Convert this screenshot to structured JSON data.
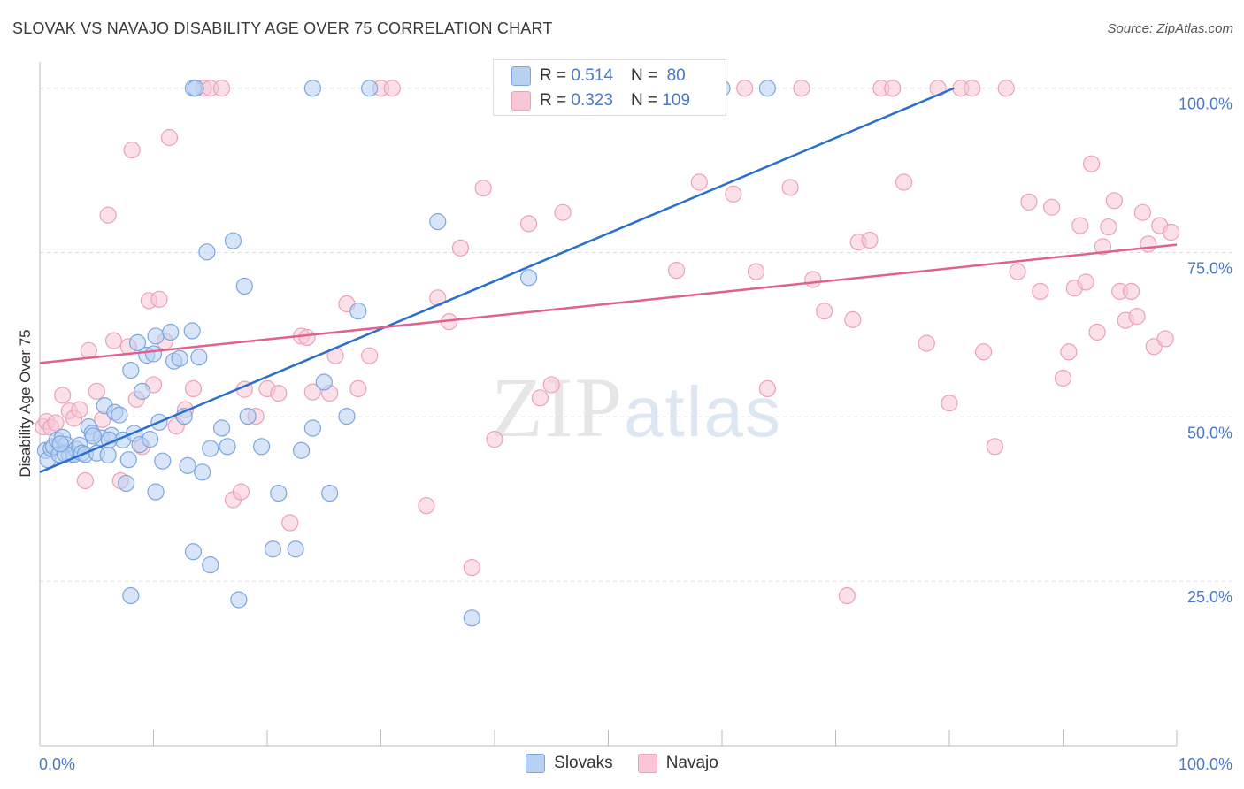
{
  "header": {
    "title": "SLOVAK VS NAVAJO DISABILITY AGE OVER 75 CORRELATION CHART",
    "source": "Source: ZipAtlas.com"
  },
  "watermark": {
    "zip": "ZIP",
    "atlas": "atlas"
  },
  "legend_top": {
    "rows": [
      {
        "r_label": "R =",
        "r_value": "0.514",
        "n_label": "N =",
        "n_value": "80"
      },
      {
        "r_label": "R =",
        "r_value": "0.323",
        "n_label": "N =",
        "n_value": "109"
      }
    ]
  },
  "colors": {
    "slovaks_fill": "#b8d0f2",
    "slovaks_stroke": "#7aa6e0",
    "slovaks_line": "#2a6fcc",
    "navajo_fill": "#f8c6d6",
    "navajo_stroke": "#eda0bb",
    "navajo_line": "#e0608e"
  },
  "chart_data": {
    "type": "scatter",
    "title": "SLOVAK VS NAVAJO DISABILITY AGE OVER 75 CORRELATION CHART",
    "xlabel": "",
    "ylabel": "Disability Age Over 75",
    "xlim": [
      0,
      100
    ],
    "ylim": [
      0,
      104
    ],
    "x_tick_labels": [
      "0.0%",
      "100.0%"
    ],
    "y_ticks": [
      25,
      50,
      75,
      100
    ],
    "y_tick_labels": [
      "25.0%",
      "50.0%",
      "75.0%",
      "100.0%"
    ],
    "grid": "horizontal dashed",
    "legend_position": "bottom-center",
    "series": [
      {
        "name": "Slovaks",
        "r": 0.514,
        "n": 80,
        "trend": [
          [
            0,
            41.6
          ],
          [
            80.4,
            100
          ]
        ],
        "points": [
          [
            0.5,
            44.9
          ],
          [
            0.7,
            43.5
          ],
          [
            1,
            45.2
          ],
          [
            1.2,
            45.5
          ],
          [
            1.5,
            46.5
          ],
          [
            1.7,
            44.3
          ],
          [
            2,
            46.9
          ],
          [
            2.3,
            45.8
          ],
          [
            2.6,
            44.2
          ],
          [
            3,
            44.3
          ],
          [
            3.2,
            45.1
          ],
          [
            3.5,
            45.7
          ],
          [
            3.7,
            44.5
          ],
          [
            4,
            44.3
          ],
          [
            4.3,
            48.5
          ],
          [
            4.6,
            47.5
          ],
          [
            5,
            44.5
          ],
          [
            5.4,
            46.8
          ],
          [
            5.7,
            51.7
          ],
          [
            6,
            44.2
          ],
          [
            6.3,
            47.2
          ],
          [
            6.6,
            50.7
          ],
          [
            7,
            50.3
          ],
          [
            7.3,
            46.5
          ],
          [
            7.6,
            39.9
          ],
          [
            7.8,
            43.5
          ],
          [
            8,
            57.1
          ],
          [
            8.3,
            47.5
          ],
          [
            8.6,
            61.3
          ],
          [
            8.8,
            45.8
          ],
          [
            9,
            53.9
          ],
          [
            9.4,
            59.4
          ],
          [
            9.7,
            46.6
          ],
          [
            10,
            59.6
          ],
          [
            10.2,
            62.3
          ],
          [
            10.5,
            49.2
          ],
          [
            10.8,
            43.3
          ],
          [
            11.5,
            62.9
          ],
          [
            11.8,
            58.5
          ],
          [
            12.3,
            58.9
          ],
          [
            12.7,
            50.1
          ],
          [
            13,
            42.6
          ],
          [
            13.4,
            63.1
          ],
          [
            14,
            59.1
          ],
          [
            14.3,
            41.6
          ],
          [
            14.7,
            75.1
          ],
          [
            15,
            45.2
          ],
          [
            16,
            48.3
          ],
          [
            16.5,
            45.5
          ],
          [
            17,
            76.8
          ],
          [
            17.5,
            22.2
          ],
          [
            18,
            69.9
          ],
          [
            18.3,
            50.1
          ],
          [
            19.5,
            45.5
          ],
          [
            20.5,
            29.9
          ],
          [
            21,
            38.4
          ],
          [
            22.5,
            29.9
          ],
          [
            23,
            44.9
          ],
          [
            24,
            48.3
          ],
          [
            25,
            55.3
          ],
          [
            25.5,
            38.4
          ],
          [
            27,
            50.1
          ],
          [
            28,
            66.1
          ],
          [
            35,
            79.7
          ],
          [
            38,
            19.4
          ],
          [
            43,
            71.2
          ],
          [
            13.5,
            29.5
          ],
          [
            15,
            27.5
          ],
          [
            10.2,
            38.6
          ],
          [
            8,
            22.8
          ],
          [
            13.5,
            100
          ],
          [
            13.7,
            100
          ],
          [
            24,
            100
          ],
          [
            29,
            100
          ],
          [
            60,
            100
          ],
          [
            64,
            100
          ],
          [
            4.7,
            47.1
          ],
          [
            6.1,
            46.5
          ],
          [
            2.2,
            44.4
          ],
          [
            1.8,
            45.9
          ]
        ]
      },
      {
        "name": "Navajo",
        "r": 0.323,
        "n": 109,
        "trend": [
          [
            0,
            58.2
          ],
          [
            100,
            76.2
          ]
        ],
        "points": [
          [
            0.3,
            48.5
          ],
          [
            0.6,
            49.3
          ],
          [
            1,
            48.4
          ],
          [
            1.4,
            49.1
          ],
          [
            2,
            53.3
          ],
          [
            2.6,
            50.9
          ],
          [
            3,
            49.8
          ],
          [
            3.5,
            51.1
          ],
          [
            4,
            40.3
          ],
          [
            4.3,
            60.1
          ],
          [
            5,
            53.9
          ],
          [
            5.5,
            49.6
          ],
          [
            6,
            80.7
          ],
          [
            6.5,
            61.6
          ],
          [
            7.1,
            40.3
          ],
          [
            7.8,
            60.7
          ],
          [
            8.1,
            90.6
          ],
          [
            8.5,
            52.7
          ],
          [
            9,
            45.5
          ],
          [
            9.6,
            67.7
          ],
          [
            10,
            54.9
          ],
          [
            10.5,
            67.9
          ],
          [
            11,
            61.5
          ],
          [
            11.4,
            92.5
          ],
          [
            12,
            48.6
          ],
          [
            12.8,
            51.1
          ],
          [
            13.5,
            54.3
          ],
          [
            14.4,
            100
          ],
          [
            15,
            100
          ],
          [
            16,
            100
          ],
          [
            17,
            37.4
          ],
          [
            17.7,
            38.6
          ],
          [
            18,
            54.2
          ],
          [
            19,
            50.1
          ],
          [
            20,
            54.3
          ],
          [
            21,
            53.6
          ],
          [
            22,
            33.9
          ],
          [
            23,
            62.3
          ],
          [
            23.5,
            62.1
          ],
          [
            24,
            53.8
          ],
          [
            25.5,
            53.6
          ],
          [
            26,
            59.3
          ],
          [
            27,
            67.2
          ],
          [
            28,
            54.3
          ],
          [
            29,
            59.3
          ],
          [
            30,
            100
          ],
          [
            31,
            100
          ],
          [
            34,
            36.5
          ],
          [
            35,
            68.1
          ],
          [
            36,
            64.5
          ],
          [
            37,
            75.7
          ],
          [
            38,
            27.1
          ],
          [
            39,
            84.8
          ],
          [
            40,
            46.6
          ],
          [
            41,
            100
          ],
          [
            43,
            79.4
          ],
          [
            44,
            52.9
          ],
          [
            45,
            54.9
          ],
          [
            46,
            81.1
          ],
          [
            53,
            100
          ],
          [
            56,
            72.3
          ],
          [
            58,
            85.7
          ],
          [
            61,
            83.9
          ],
          [
            62,
            100
          ],
          [
            63,
            72.1
          ],
          [
            64,
            54.3
          ],
          [
            66,
            84.9
          ],
          [
            67,
            100
          ],
          [
            68,
            70.9
          ],
          [
            69,
            66.1
          ],
          [
            71,
            22.8
          ],
          [
            71.5,
            64.8
          ],
          [
            72,
            76.6
          ],
          [
            73,
            76.9
          ],
          [
            74,
            100
          ],
          [
            75,
            100
          ],
          [
            76,
            85.7
          ],
          [
            78,
            61.2
          ],
          [
            79,
            100
          ],
          [
            80,
            52.1
          ],
          [
            81,
            100
          ],
          [
            82,
            100
          ],
          [
            83,
            59.9
          ],
          [
            84,
            45.5
          ],
          [
            85,
            100
          ],
          [
            86,
            72.1
          ],
          [
            87,
            82.7
          ],
          [
            88,
            69.1
          ],
          [
            89,
            81.9
          ],
          [
            90,
            55.9
          ],
          [
            90.5,
            59.9
          ],
          [
            91,
            69.6
          ],
          [
            91.5,
            79.1
          ],
          [
            92,
            70.5
          ],
          [
            92.5,
            88.5
          ],
          [
            93,
            62.9
          ],
          [
            93.5,
            75.9
          ],
          [
            94,
            78.9
          ],
          [
            94.5,
            82.9
          ],
          [
            95,
            69.1
          ],
          [
            95.5,
            64.7
          ],
          [
            96,
            69.1
          ],
          [
            96.5,
            65.3
          ],
          [
            97,
            81.1
          ],
          [
            97.5,
            76.3
          ],
          [
            98,
            60.7
          ],
          [
            98.5,
            79.1
          ],
          [
            99,
            61.9
          ],
          [
            99.5,
            78.1
          ]
        ]
      }
    ]
  },
  "bottom_legend": {
    "items": [
      "Slovaks",
      "Navajo"
    ]
  }
}
